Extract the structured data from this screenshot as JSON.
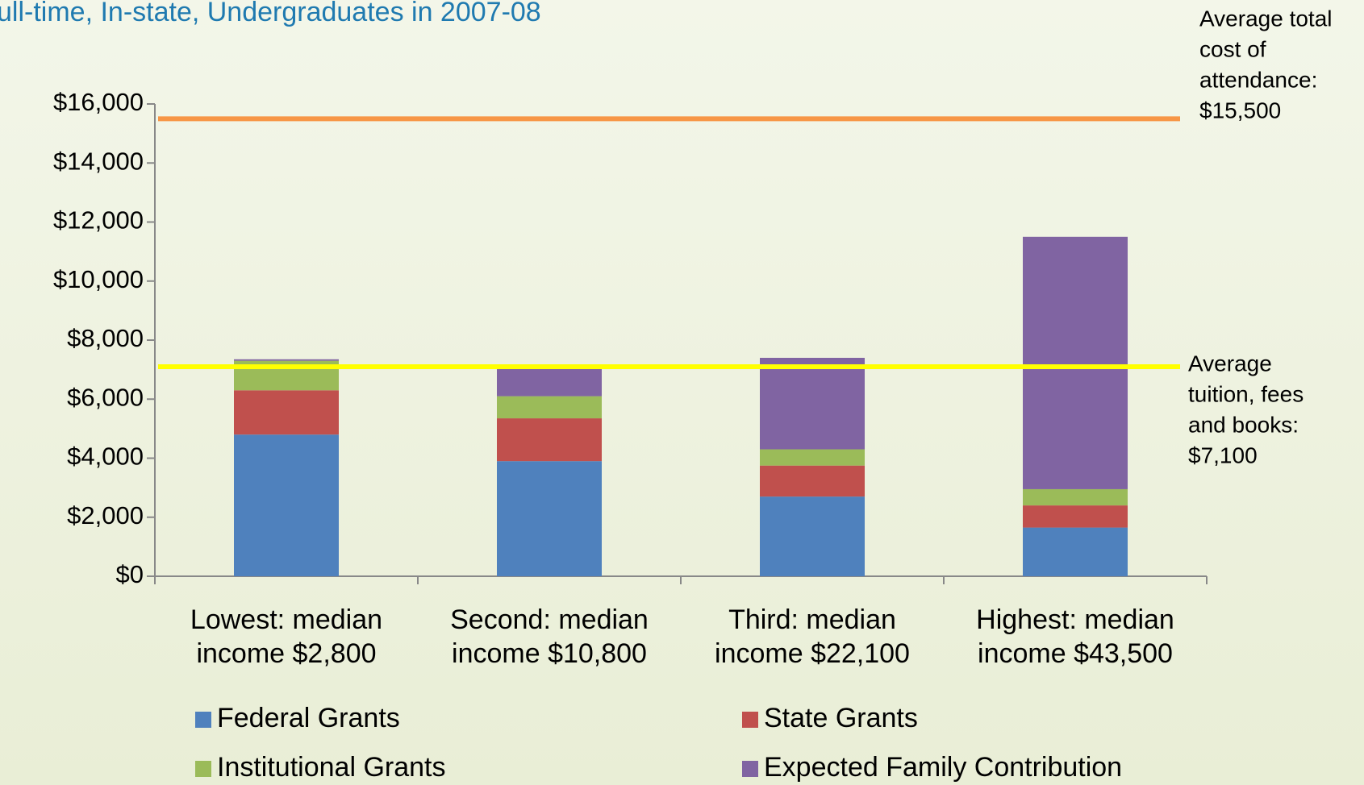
{
  "chart_data": {
    "type": "stacked_bar",
    "title": "ull-time, In-state, Undergraduates in 2007-08",
    "categories": [
      [
        "Lowest: median",
        "income  $2,800"
      ],
      [
        "Second: median",
        "income $10,800"
      ],
      [
        "Third: median",
        "income $22,100"
      ],
      [
        "Highest: median",
        "income $43,500"
      ]
    ],
    "series": [
      {
        "name": "Federal Grants",
        "color": "#4f81bd",
        "values": [
          4800,
          3900,
          2700,
          1650
        ]
      },
      {
        "name": "State Grants",
        "color": "#c0504d",
        "values": [
          1500,
          1450,
          1050,
          750
        ]
      },
      {
        "name": "Institutional Grants",
        "color": "#9bbb59",
        "values": [
          1000,
          750,
          550,
          550
        ]
      },
      {
        "name": "Expected Family Contribution",
        "color": "#8064a2",
        "values": [
          50,
          1050,
          3100,
          8550
        ]
      }
    ],
    "reference_lines": [
      {
        "value": 15500,
        "color": "#f79646",
        "label": [
          "Average total",
          "cost of",
          "attendance:",
          "$15,500"
        ]
      },
      {
        "value": 7100,
        "color": "#ffff00",
        "label": [
          "Average",
          "tuition, fees",
          "and books:",
          "$7,100"
        ]
      }
    ],
    "ylim": [
      0,
      16000
    ],
    "yticks": [
      {
        "value": 0,
        "label": "$0"
      },
      {
        "value": 2000,
        "label": "$2,000"
      },
      {
        "value": 4000,
        "label": "$4,000"
      },
      {
        "value": 6000,
        "label": "$6,000"
      },
      {
        "value": 8000,
        "label": "$8,000"
      },
      {
        "value": 10000,
        "label": "$10,000"
      },
      {
        "value": 12000,
        "label": "$12,000"
      },
      {
        "value": 14000,
        "label": "$14,000"
      },
      {
        "value": 16000,
        "label": "$16,000"
      }
    ],
    "legend": "bottom"
  }
}
